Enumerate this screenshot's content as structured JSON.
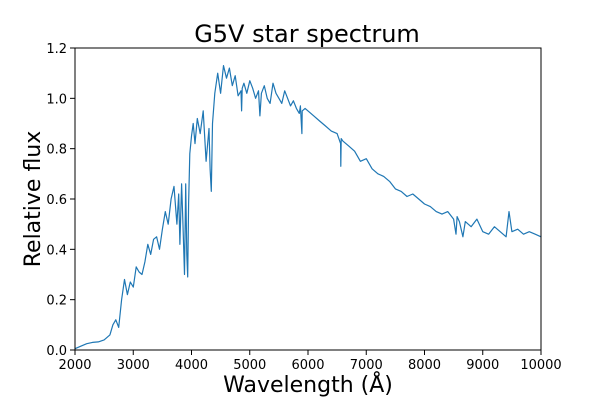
{
  "chart_data": {
    "type": "line",
    "title": "G5V star spectrum",
    "xlabel": "Wavelength (Å)",
    "ylabel": "Relative flux",
    "xlim": [
      2000,
      10000
    ],
    "ylim": [
      0.0,
      1.2
    ],
    "x_ticks": [
      2000,
      3000,
      4000,
      5000,
      6000,
      7000,
      8000,
      9000,
      10000
    ],
    "y_ticks": [
      "0.0",
      "0.2",
      "0.4",
      "0.6",
      "0.8",
      "1.0",
      "1.2"
    ],
    "grid": false,
    "legend": "none",
    "series": [
      {
        "color": "#1f77b4",
        "x": [
          2000,
          2100,
          2200,
          2300,
          2400,
          2500,
          2550,
          2600,
          2650,
          2700,
          2750,
          2800,
          2850,
          2900,
          2950,
          3000,
          3050,
          3100,
          3150,
          3200,
          3250,
          3300,
          3350,
          3400,
          3450,
          3500,
          3550,
          3600,
          3650,
          3700,
          3750,
          3780,
          3800,
          3830,
          3850,
          3880,
          3900,
          3920,
          3935,
          3950,
          3970,
          4000,
          4030,
          4060,
          4100,
          4150,
          4200,
          4250,
          4300,
          4320,
          4340,
          4360,
          4400,
          4450,
          4500,
          4550,
          4600,
          4650,
          4700,
          4750,
          4800,
          4850,
          4860,
          4870,
          4900,
          4950,
          5000,
          5050,
          5100,
          5150,
          5175,
          5200,
          5250,
          5300,
          5350,
          5400,
          5450,
          5500,
          5550,
          5600,
          5650,
          5700,
          5750,
          5800,
          5850,
          5870,
          5895,
          5900,
          5950,
          6000,
          6100,
          6200,
          6300,
          6400,
          6500,
          6560,
          6563,
          6570,
          6600,
          6700,
          6800,
          6900,
          7000,
          7100,
          7200,
          7300,
          7400,
          7500,
          7600,
          7700,
          7800,
          7900,
          8000,
          8100,
          8200,
          8300,
          8400,
          8500,
          8540,
          8560,
          8600,
          8660,
          8700,
          8800,
          8900,
          9000,
          9100,
          9200,
          9300,
          9400,
          9450,
          9500,
          9600,
          9700,
          9800,
          9900,
          10000
        ],
        "y": [
          0.005,
          0.015,
          0.025,
          0.03,
          0.032,
          0.04,
          0.05,
          0.06,
          0.1,
          0.12,
          0.09,
          0.2,
          0.28,
          0.22,
          0.27,
          0.25,
          0.33,
          0.31,
          0.3,
          0.35,
          0.42,
          0.38,
          0.44,
          0.45,
          0.4,
          0.48,
          0.55,
          0.5,
          0.6,
          0.65,
          0.5,
          0.62,
          0.42,
          0.66,
          0.52,
          0.3,
          0.66,
          0.38,
          0.29,
          0.58,
          0.78,
          0.85,
          0.9,
          0.82,
          0.92,
          0.86,
          0.95,
          0.75,
          0.88,
          0.72,
          0.63,
          0.9,
          1.02,
          1.1,
          1.02,
          1.13,
          1.08,
          1.12,
          1.05,
          1.09,
          1.01,
          1.03,
          0.95,
          1.04,
          1.06,
          1.02,
          1.07,
          1.04,
          1.0,
          1.03,
          0.93,
          1.02,
          1.05,
          1.0,
          0.98,
          1.06,
          1.02,
          1.0,
          0.98,
          1.03,
          1.0,
          0.97,
          0.99,
          0.96,
          0.94,
          0.97,
          0.86,
          0.95,
          0.96,
          0.95,
          0.93,
          0.91,
          0.89,
          0.87,
          0.86,
          0.82,
          0.73,
          0.84,
          0.83,
          0.81,
          0.79,
          0.75,
          0.76,
          0.72,
          0.7,
          0.69,
          0.67,
          0.64,
          0.63,
          0.61,
          0.62,
          0.6,
          0.58,
          0.57,
          0.55,
          0.54,
          0.55,
          0.52,
          0.46,
          0.53,
          0.51,
          0.45,
          0.51,
          0.49,
          0.52,
          0.47,
          0.46,
          0.49,
          0.47,
          0.45,
          0.55,
          0.47,
          0.48,
          0.46,
          0.47,
          0.46,
          0.45
        ]
      }
    ]
  }
}
